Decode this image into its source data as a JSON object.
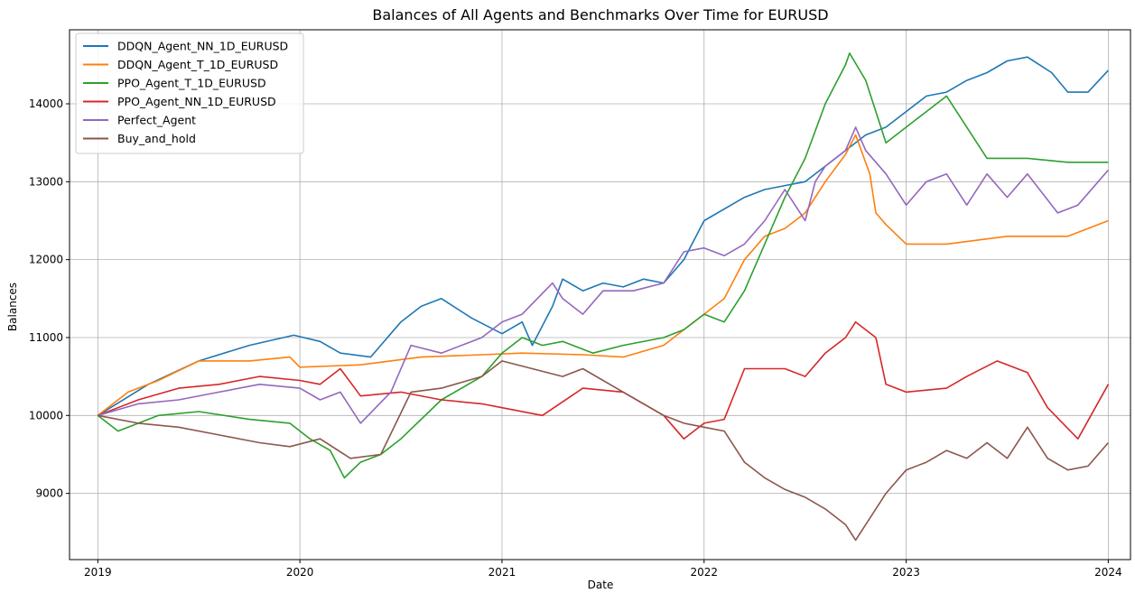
{
  "chart_data": {
    "type": "line",
    "title": "Balances of All Agents and Benchmarks Over Time for EURUSD",
    "xlabel": "Date",
    "ylabel": "Balances",
    "xlim": [
      2018.86,
      2024.11
    ],
    "ylim": [
      8150,
      14950
    ],
    "xticks": [
      2019,
      2020,
      2021,
      2022,
      2023,
      2024
    ],
    "xtick_labels": [
      "2019",
      "2020",
      "2021",
      "2022",
      "2023",
      "2024"
    ],
    "yticks": [
      9000,
      10000,
      11000,
      12000,
      13000,
      14000
    ],
    "ytick_labels": [
      "9000",
      "10000",
      "11000",
      "12000",
      "13000",
      "14000"
    ],
    "grid": true,
    "legend_position": "top-left",
    "series": [
      {
        "name": "DDQN_Agent_NN_1D_EURUSD",
        "color": "#1f77b4",
        "x": [
          2019.0,
          2019.25,
          2019.5,
          2019.75,
          2019.97,
          2020.1,
          2020.2,
          2020.35,
          2020.5,
          2020.6,
          2020.7,
          2020.85,
          2021.0,
          2021.1,
          2021.15,
          2021.25,
          2021.3,
          2021.4,
          2021.5,
          2021.6,
          2021.7,
          2021.8,
          2021.9,
          2022.0,
          2022.2,
          2022.3,
          2022.4,
          2022.5,
          2022.6,
          2022.7,
          2022.8,
          2022.9,
          2023.0,
          2023.1,
          2023.2,
          2023.3,
          2023.4,
          2023.5,
          2023.6,
          2023.72,
          2023.8,
          2023.9,
          2024.0
        ],
        "values": [
          10000,
          10400,
          10700,
          10900,
          11030,
          10950,
          10800,
          10750,
          11200,
          11400,
          11500,
          11250,
          11050,
          11200,
          10900,
          11400,
          11750,
          11600,
          11700,
          11650,
          11750,
          11700,
          12000,
          12500,
          12800,
          12900,
          12950,
          13000,
          13200,
          13400,
          13600,
          13700,
          13900,
          14100,
          14150,
          14300,
          14400,
          14550,
          14600,
          14400,
          14150,
          14150,
          14430
        ]
      },
      {
        "name": "DDQN_Agent_T_1D_EURUSD",
        "color": "#ff7f0e",
        "x": [
          2019.0,
          2019.15,
          2019.3,
          2019.5,
          2019.75,
          2019.95,
          2020.0,
          2020.3,
          2020.6,
          2020.9,
          2021.1,
          2021.4,
          2021.6,
          2021.8,
          2021.9,
          2022.0,
          2022.1,
          2022.2,
          2022.3,
          2022.4,
          2022.5,
          2022.6,
          2022.7,
          2022.75,
          2022.82,
          2022.85,
          2022.9,
          2023.0,
          2023.2,
          2023.5,
          2023.8,
          2024.0
        ],
        "values": [
          10000,
          10300,
          10450,
          10700,
          10700,
          10750,
          10620,
          10650,
          10750,
          10780,
          10800,
          10780,
          10750,
          10900,
          11100,
          11300,
          11500,
          12000,
          12300,
          12400,
          12600,
          13000,
          13350,
          13600,
          13100,
          12600,
          12450,
          12200,
          12200,
          12300,
          12300,
          12500
        ]
      },
      {
        "name": "PPO_Agent_T_1D_EURUSD",
        "color": "#2ca02c",
        "x": [
          2019.0,
          2019.1,
          2019.3,
          2019.5,
          2019.75,
          2019.95,
          2020.05,
          2020.15,
          2020.22,
          2020.3,
          2020.4,
          2020.5,
          2020.7,
          2020.9,
          2021.0,
          2021.1,
          2021.2,
          2021.3,
          2021.45,
          2021.6,
          2021.8,
          2021.9,
          2022.0,
          2022.1,
          2022.2,
          2022.3,
          2022.4,
          2022.5,
          2022.6,
          2022.7,
          2022.72,
          2022.8,
          2022.9,
          2023.0,
          2023.1,
          2023.2,
          2023.3,
          2023.4,
          2023.6,
          2023.8,
          2024.0
        ],
        "values": [
          10000,
          9800,
          10000,
          10050,
          9950,
          9900,
          9700,
          9550,
          9200,
          9400,
          9500,
          9700,
          10200,
          10500,
          10800,
          11000,
          10900,
          10950,
          10800,
          10900,
          11000,
          11100,
          11300,
          11200,
          11600,
          12200,
          12800,
          13300,
          14000,
          14500,
          14650,
          14300,
          13500,
          13700,
          13900,
          14100,
          13700,
          13300,
          13300,
          13250,
          13250
        ]
      },
      {
        "name": "PPO_Agent_NN_1D_EURUSD",
        "color": "#d62728",
        "x": [
          2019.0,
          2019.2,
          2019.4,
          2019.6,
          2019.8,
          2020.0,
          2020.1,
          2020.2,
          2020.3,
          2020.5,
          2020.7,
          2020.9,
          2021.0,
          2021.2,
          2021.4,
          2021.6,
          2021.8,
          2021.9,
          2022.0,
          2022.1,
          2022.2,
          2022.4,
          2022.5,
          2022.6,
          2022.7,
          2022.75,
          2022.85,
          2022.9,
          2023.0,
          2023.2,
          2023.3,
          2023.45,
          2023.6,
          2023.7,
          2023.85,
          2024.0
        ],
        "values": [
          10000,
          10200,
          10350,
          10400,
          10500,
          10450,
          10400,
          10600,
          10250,
          10300,
          10200,
          10150,
          10100,
          10000,
          10350,
          10300,
          10000,
          9700,
          9900,
          9950,
          10600,
          10600,
          10500,
          10800,
          11000,
          11200,
          11000,
          10400,
          10300,
          10350,
          10500,
          10700,
          10550,
          10100,
          9700,
          10400
        ]
      },
      {
        "name": "Perfect_Agent",
        "color": "#9467bd",
        "x": [
          2019.0,
          2019.2,
          2019.4,
          2019.6,
          2019.8,
          2020.0,
          2020.1,
          2020.2,
          2020.3,
          2020.45,
          2020.55,
          2020.7,
          2020.9,
          2021.0,
          2021.1,
          2021.25,
          2021.3,
          2021.4,
          2021.5,
          2021.65,
          2021.8,
          2021.9,
          2022.0,
          2022.1,
          2022.2,
          2022.3,
          2022.4,
          2022.5,
          2022.55,
          2022.6,
          2022.7,
          2022.75,
          2022.8,
          2022.9,
          2023.0,
          2023.1,
          2023.2,
          2023.3,
          2023.4,
          2023.5,
          2023.6,
          2023.75,
          2023.85,
          2024.0
        ],
        "values": [
          10000,
          10150,
          10200,
          10300,
          10400,
          10350,
          10200,
          10300,
          9900,
          10300,
          10900,
          10800,
          11000,
          11200,
          11300,
          11700,
          11500,
          11300,
          11600,
          11600,
          11700,
          12100,
          12150,
          12050,
          12200,
          12500,
          12900,
          12500,
          13000,
          13200,
          13400,
          13700,
          13400,
          13100,
          12700,
          13000,
          13100,
          12700,
          13100,
          12800,
          13100,
          12600,
          12700,
          13150
        ]
      },
      {
        "name": "Buy_and_hold",
        "color": "#8c564b",
        "x": [
          2019.0,
          2019.2,
          2019.4,
          2019.6,
          2019.8,
          2019.95,
          2020.1,
          2020.25,
          2020.4,
          2020.55,
          2020.7,
          2020.9,
          2021.0,
          2021.15,
          2021.3,
          2021.4,
          2021.6,
          2021.8,
          2021.9,
          2022.0,
          2022.1,
          2022.2,
          2022.3,
          2022.4,
          2022.5,
          2022.6,
          2022.7,
          2022.75,
          2022.8,
          2022.9,
          2023.0,
          2023.1,
          2023.2,
          2023.3,
          2023.4,
          2023.5,
          2023.6,
          2023.7,
          2023.8,
          2023.9,
          2024.0
        ],
        "values": [
          10000,
          9900,
          9850,
          9750,
          9650,
          9600,
          9700,
          9450,
          9500,
          10300,
          10350,
          10500,
          10700,
          10600,
          10500,
          10600,
          10300,
          10000,
          9900,
          9850,
          9800,
          9400,
          9200,
          9050,
          8950,
          8800,
          8600,
          8400,
          8600,
          9000,
          9300,
          9400,
          9550,
          9450,
          9650,
          9450,
          9850,
          9450,
          9300,
          9350,
          9650
        ]
      }
    ]
  }
}
